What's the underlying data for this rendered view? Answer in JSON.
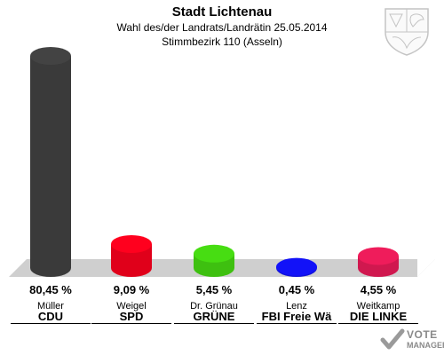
{
  "header": {
    "title": "Stadt Lichtenau",
    "subtitle": "Wahl des/der Landrats/Landrätin 25.05.2014",
    "district": "Stimmbezirk 110 (Asseln)"
  },
  "chart_data": {
    "type": "bar",
    "ylim": [
      0,
      100
    ],
    "grid": false,
    "categories": [
      "CDU",
      "SPD",
      "GRÜNE",
      "FBI Freie Wä",
      "DIE LINKE"
    ],
    "candidates": [
      "Müller",
      "Weigel",
      "Dr. Grünau",
      "Lenz",
      "Weitkamp"
    ],
    "values": [
      80.45,
      9.09,
      5.45,
      0.45,
      4.55
    ],
    "value_labels": [
      "80,45 %",
      "9,09 %",
      "5,45 %",
      "0,45 %",
      "4,55 %"
    ],
    "colors": [
      "#3a3a3a",
      "#e0001a",
      "#3ec010",
      "#1010d8",
      "#d0184f"
    ]
  },
  "logo": {
    "line1": "VOTE",
    "line2": "MANAGER"
  },
  "crest": {
    "name": "crest-icon"
  }
}
